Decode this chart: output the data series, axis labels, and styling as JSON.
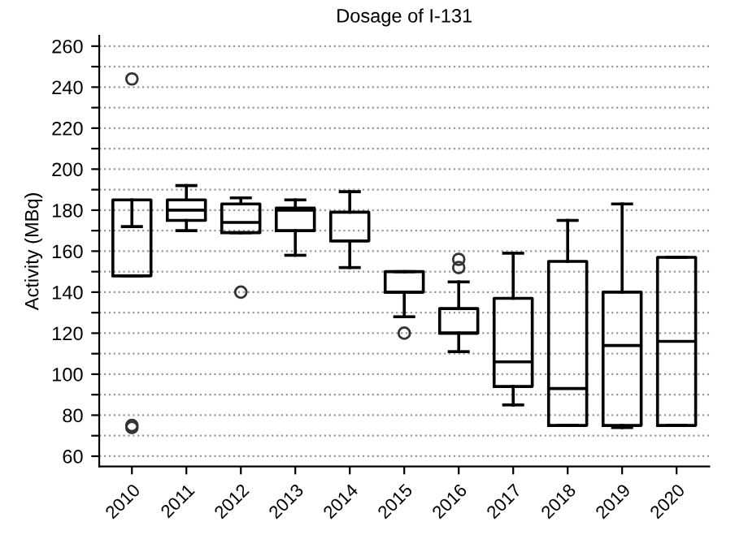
{
  "chart_data": {
    "type": "box",
    "title": "Dosage of I-131",
    "ylabel": "Activity (MBq)",
    "categories": [
      "2010",
      "2011",
      "2012",
      "2013",
      "2014",
      "2015",
      "2016",
      "2017",
      "2018",
      "2019",
      "2020"
    ],
    "boxes": [
      {
        "low": 148,
        "q1": 148,
        "median": 148,
        "q3": 185,
        "high": 172,
        "outliers": [
          244,
          74,
          75
        ]
      },
      {
        "low": 170,
        "q1": 175,
        "median": 180,
        "q3": 185,
        "high": 192
      },
      {
        "low": 169,
        "q1": 169,
        "median": 174,
        "q3": 183,
        "high": 186,
        "outliers": [
          140
        ]
      },
      {
        "low": 158,
        "q1": 170,
        "median": 180,
        "q3": 181,
        "high": 185
      },
      {
        "low": 152,
        "q1": 165,
        "median": 165,
        "q3": 179,
        "high": 189
      },
      {
        "low": 128,
        "q1": 140,
        "median": 140,
        "q3": 150,
        "high": 150,
        "outliers": [
          120
        ]
      },
      {
        "low": 111,
        "q1": 120,
        "median": 120,
        "q3": 132,
        "high": 145,
        "outliers": [
          152,
          156
        ]
      },
      {
        "low": 85,
        "q1": 94,
        "median": 106,
        "q3": 137,
        "high": 159
      },
      {
        "low": 75,
        "q1": 75,
        "median": 93,
        "q3": 155,
        "high": 175
      },
      {
        "low": 74,
        "q1": 75,
        "median": 114,
        "q3": 140,
        "high": 183
      },
      {
        "low": 75,
        "q1": 75,
        "median": 116,
        "q3": 157,
        "high": 157
      }
    ],
    "color": "#000000",
    "ylim": [
      55,
      265
    ],
    "yticks": [
      60,
      {
        "value": 70,
        "label": null
      },
      80,
      {
        "value": 90,
        "label": null
      },
      100,
      {
        "value": 110,
        "label": null
      },
      120,
      {
        "value": 130,
        "label": null
      },
      140,
      {
        "value": 150,
        "label": null
      },
      160,
      {
        "value": 170,
        "label": null
      },
      180,
      {
        "value": 190,
        "label": null
      },
      200,
      {
        "value": 210,
        "label": null
      },
      220,
      {
        "value": 230,
        "label": null
      },
      240,
      {
        "value": 250,
        "label": null
      },
      260
    ],
    "grid": "y"
  }
}
